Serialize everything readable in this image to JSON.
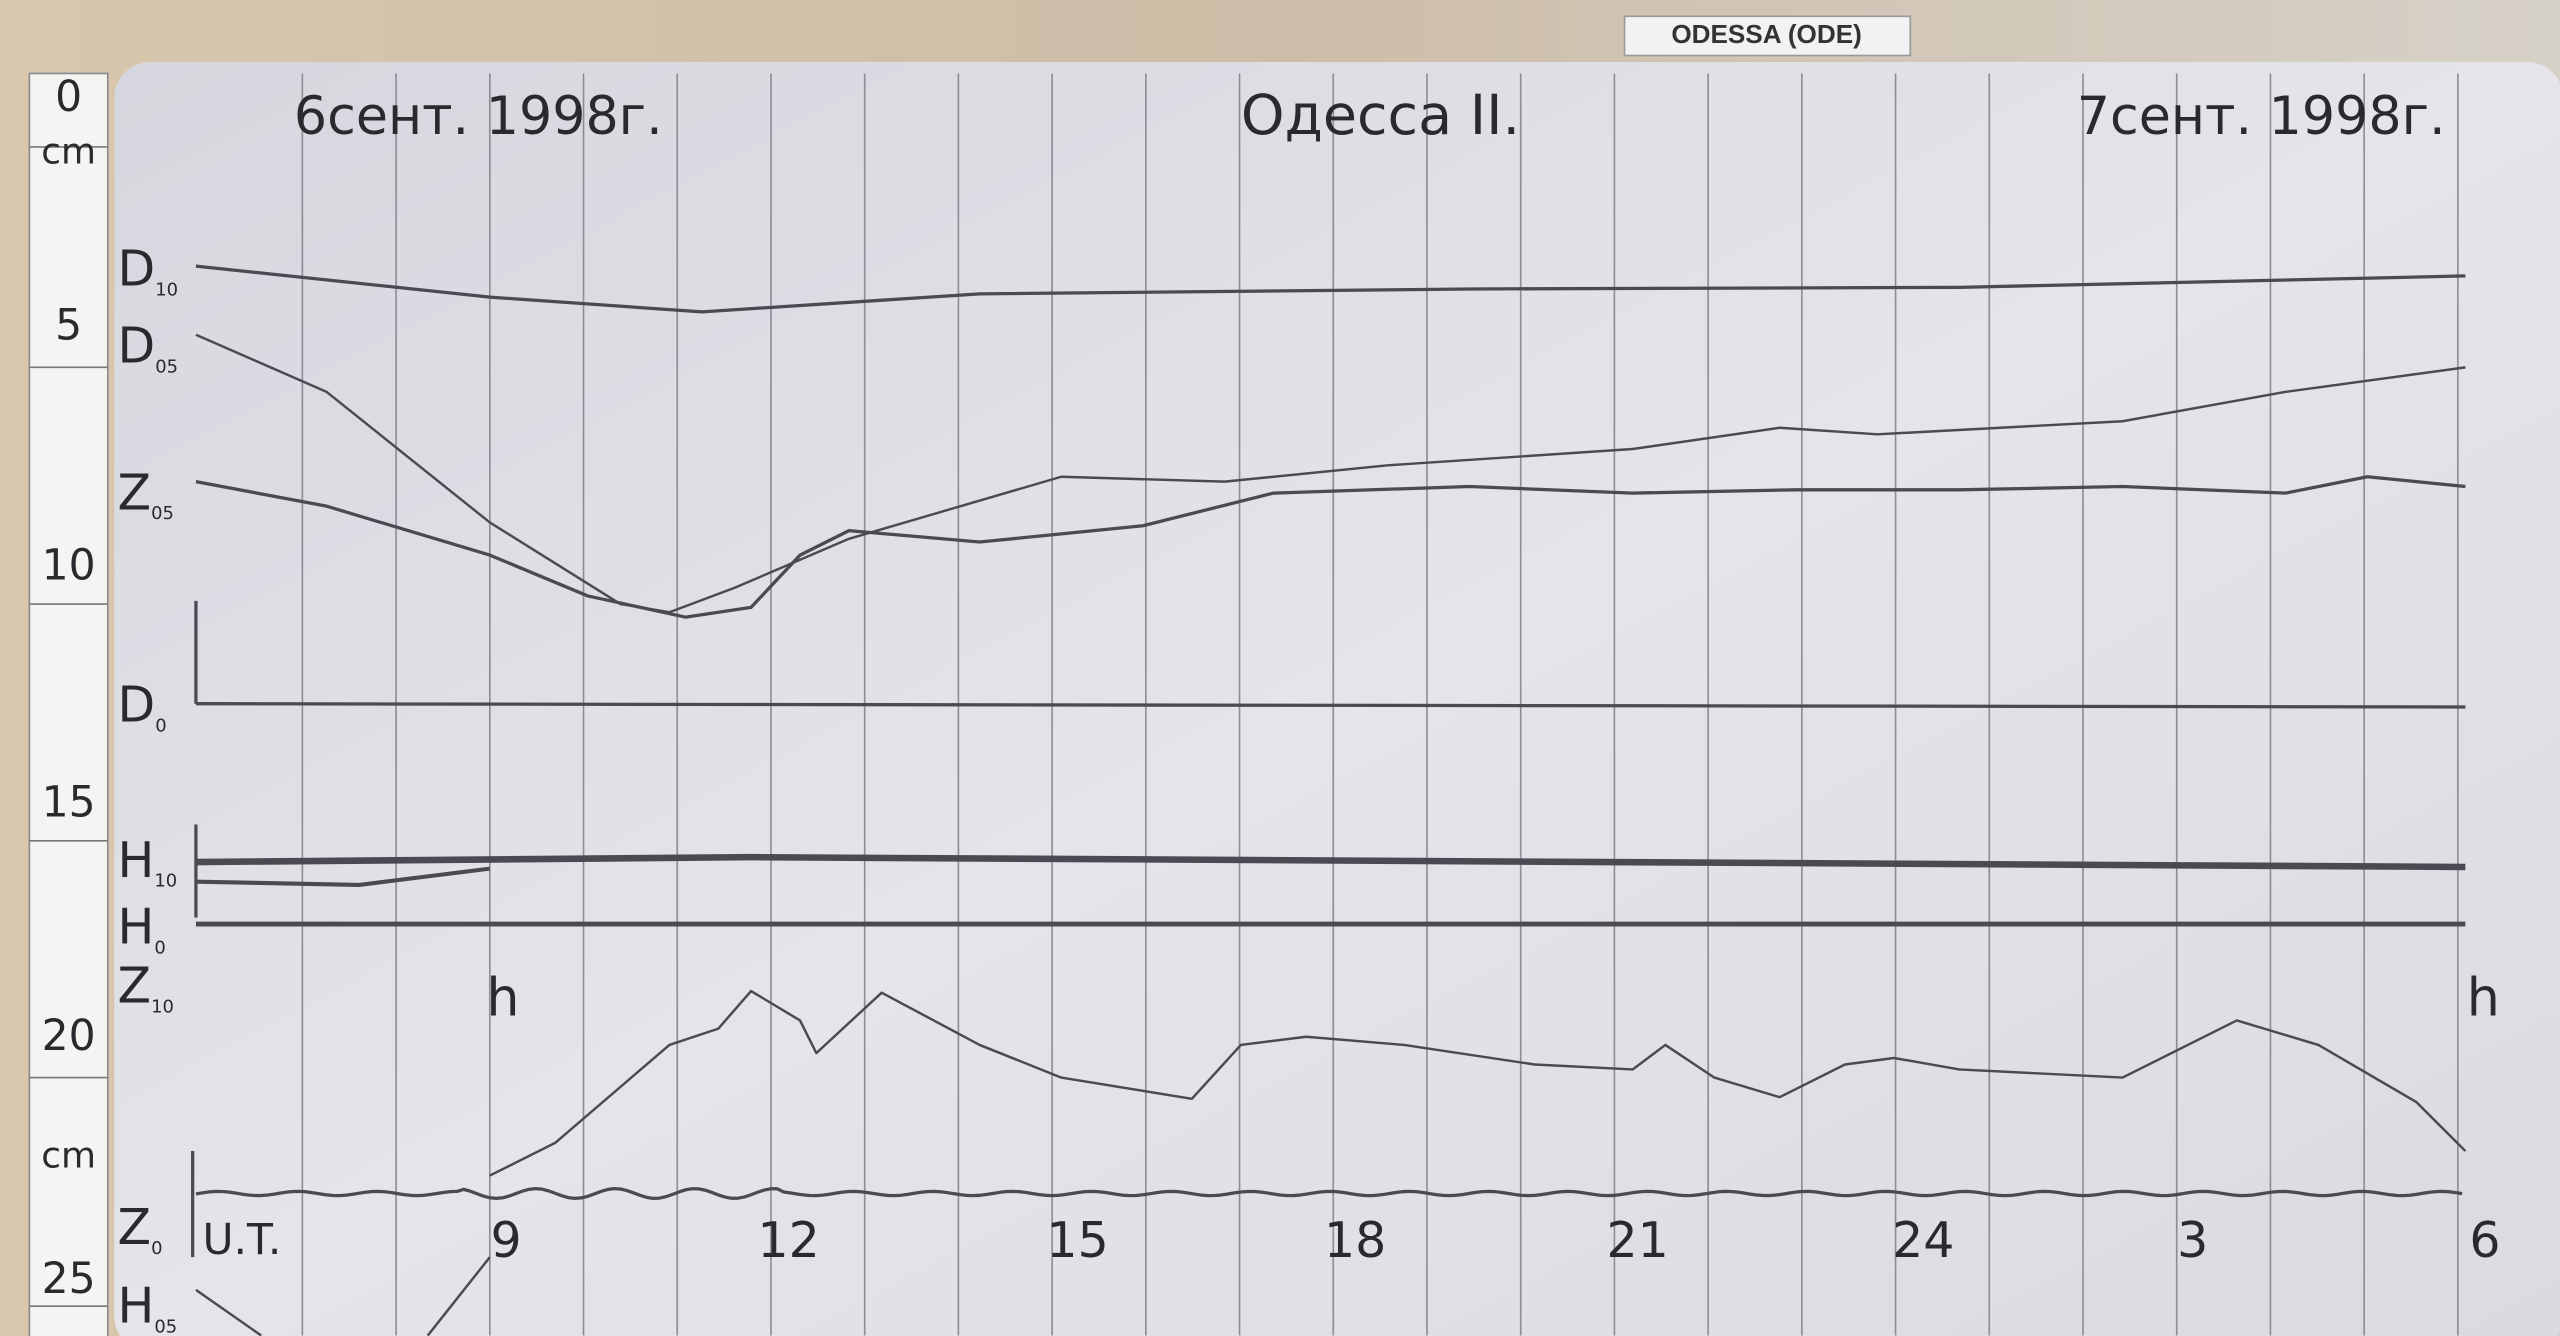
{
  "header": {
    "station_tag": "ODESSA (ODE)"
  },
  "sheet": {
    "date_left": "6сент. 1998г.",
    "title": "Одесса II.",
    "date_right": "7сент. 1998г.",
    "traces": [
      {
        "letter": "D",
        "sub": "10"
      },
      {
        "letter": "D",
        "sub": "05"
      },
      {
        "letter": "Z",
        "sub": "05"
      },
      {
        "letter": "D",
        "sub": "0"
      },
      {
        "letter": "H",
        "sub": "10"
      },
      {
        "letter": "H",
        "sub": "0"
      },
      {
        "letter": "Z",
        "sub": "10"
      },
      {
        "letter": "Z",
        "sub": "0"
      },
      {
        "letter": "H",
        "sub": "05"
      }
    ],
    "time_label": "U.T.",
    "hours": [
      "9",
      "12",
      "15",
      "18",
      "21",
      "24",
      "3",
      "6"
    ],
    "hour_marks": [
      "h",
      "h"
    ]
  },
  "ruler": {
    "labels": [
      "0",
      "cm",
      "5",
      "10",
      "15",
      "20",
      "cm",
      "25"
    ]
  }
}
